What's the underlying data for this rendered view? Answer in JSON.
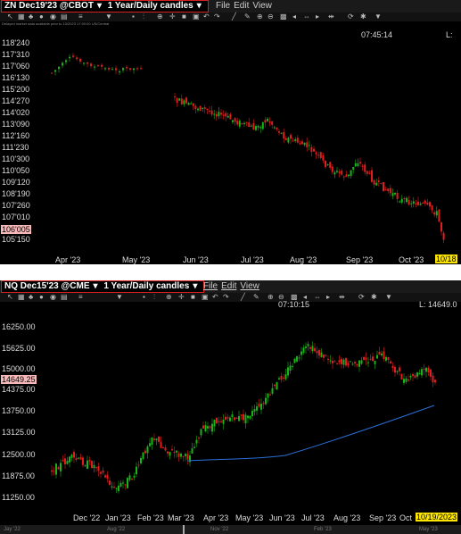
{
  "panel1": {
    "symbol": "ZN Dec19'23 @CBOT",
    "timeframe": "1 Year/Daily candles",
    "menu": [
      "File",
      "Edit",
      "View"
    ],
    "note": "Delayed market data available prior to 10/2023 17:00:00 US/Central",
    "time": "07:45:14",
    "last": "L:",
    "current_price": "106'005",
    "current_date": "10/18",
    "y_labels": [
      "118'240",
      "117'310",
      "117'060",
      "116'130",
      "115'200",
      "114'270",
      "114'020",
      "113'090",
      "112'160",
      "111'230",
      "110'300",
      "110'050",
      "109'120",
      "108'190",
      "107'260",
      "107'010",
      "106'005",
      "105'150"
    ],
    "x_labels": [
      "Apr '23",
      "May '23",
      "Jun '23",
      "Jul '23",
      "Aug '23",
      "Sep '23",
      "Oct '23"
    ]
  },
  "panel2": {
    "symbol": "NQ Dec15'23 @CME",
    "timeframe": "1 Year/Daily candles",
    "menu": [
      "File",
      "Edit",
      "View"
    ],
    "time": "07:10:15",
    "last": "L: 14649.0",
    "current_price": "14649.25",
    "current_date": "10/19/2023",
    "y_labels": [
      "16250.00",
      "15625.00",
      "15000.00",
      "14375.00",
      "13750.00",
      "13125.00",
      "12500.00",
      "11875.00",
      "11250.00"
    ],
    "x_labels": [
      "Dec '22",
      "Jan '23",
      "Feb '23",
      "Mar '23",
      "Apr '23",
      "May '23",
      "Jun '23",
      "Jul '23",
      "Aug '23",
      "Sep '23",
      "Oct"
    ],
    "scroll_labels": [
      "Jay '22",
      "Aug '22",
      "Nov '22",
      "Feb '23",
      "May '23"
    ]
  },
  "colors": {
    "up": "#18b418",
    "down": "#e01e1e",
    "ma": "#2a6fd6",
    "border": "#d62020",
    "price_hl": "#f6b8b8",
    "date_hl": "#ffe600"
  }
}
